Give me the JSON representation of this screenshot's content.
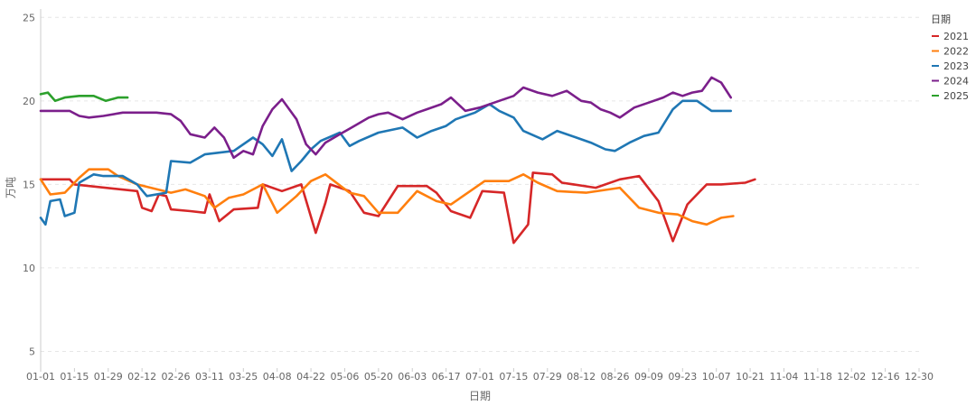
{
  "chart_data": {
    "type": "line",
    "title": "",
    "xlabel": "日期",
    "ylabel": "万吨",
    "ylim": [
      4,
      25.5
    ],
    "yticks": [
      5,
      10,
      15,
      20,
      25
    ],
    "grid": "horizontal dashed",
    "legend": {
      "title": "日期",
      "placement": "right"
    },
    "x_ticks": [
      "01-01",
      "01-15",
      "01-29",
      "02-12",
      "02-26",
      "03-11",
      "03-25",
      "04-08",
      "04-22",
      "05-06",
      "05-20",
      "06-03",
      "06-17",
      "07-01",
      "07-15",
      "07-29",
      "08-12",
      "08-26",
      "09-09",
      "09-23",
      "10-07",
      "10-21",
      "11-04",
      "11-18",
      "12-02",
      "12-16",
      "12-30"
    ],
    "series": [
      {
        "name": "2021",
        "color": "#d62728",
        "points": [
          [
            0,
            15.3
          ],
          [
            12,
            15.3
          ],
          [
            14,
            15.0
          ],
          [
            40,
            14.6
          ],
          [
            42,
            13.6
          ],
          [
            46,
            13.4
          ],
          [
            49,
            14.4
          ],
          [
            52,
            14.3
          ],
          [
            54,
            13.5
          ],
          [
            62,
            13.4
          ],
          [
            68,
            13.3
          ],
          [
            70,
            14.4
          ],
          [
            74,
            12.8
          ],
          [
            80,
            13.5
          ],
          [
            90,
            13.6
          ],
          [
            92,
            15.0
          ],
          [
            100,
            14.6
          ],
          [
            108,
            15.0
          ],
          [
            114,
            12.1
          ],
          [
            118,
            13.9
          ],
          [
            120,
            15.0
          ],
          [
            128,
            14.6
          ],
          [
            134,
            13.3
          ],
          [
            140,
            13.1
          ],
          [
            148,
            14.9
          ],
          [
            160,
            14.9
          ],
          [
            164,
            14.5
          ],
          [
            170,
            13.4
          ],
          [
            178,
            13.0
          ],
          [
            183,
            14.6
          ],
          [
            192,
            14.5
          ],
          [
            196,
            11.5
          ],
          [
            202,
            12.6
          ],
          [
            204,
            15.7
          ],
          [
            212,
            15.6
          ],
          [
            216,
            15.1
          ],
          [
            230,
            14.8
          ],
          [
            240,
            15.3
          ],
          [
            248,
            15.5
          ],
          [
            256,
            14.0
          ],
          [
            262,
            11.6
          ],
          [
            268,
            13.8
          ],
          [
            276,
            15.0
          ],
          [
            282,
            15.0
          ],
          [
            292,
            15.1
          ],
          [
            296,
            15.3
          ]
        ]
      },
      {
        "name": "2022",
        "color": "#ff7f0e",
        "points": [
          [
            0,
            15.3
          ],
          [
            4,
            14.4
          ],
          [
            10,
            14.5
          ],
          [
            16,
            15.4
          ],
          [
            20,
            15.9
          ],
          [
            28,
            15.9
          ],
          [
            32,
            15.5
          ],
          [
            40,
            15.0
          ],
          [
            54,
            14.5
          ],
          [
            60,
            14.7
          ],
          [
            68,
            14.3
          ],
          [
            72,
            13.6
          ],
          [
            78,
            14.2
          ],
          [
            84,
            14.4
          ],
          [
            92,
            15.0
          ],
          [
            98,
            13.3
          ],
          [
            106,
            14.3
          ],
          [
            112,
            15.2
          ],
          [
            118,
            15.6
          ],
          [
            128,
            14.5
          ],
          [
            134,
            14.3
          ],
          [
            140,
            13.3
          ],
          [
            148,
            13.3
          ],
          [
            156,
            14.6
          ],
          [
            164,
            14.0
          ],
          [
            170,
            13.8
          ],
          [
            178,
            14.6
          ],
          [
            184,
            15.2
          ],
          [
            194,
            15.2
          ],
          [
            200,
            15.6
          ],
          [
            206,
            15.1
          ],
          [
            214,
            14.6
          ],
          [
            226,
            14.5
          ],
          [
            240,
            14.8
          ],
          [
            248,
            13.6
          ],
          [
            256,
            13.3
          ],
          [
            264,
            13.2
          ],
          [
            270,
            12.8
          ],
          [
            276,
            12.6
          ],
          [
            282,
            13.0
          ],
          [
            287,
            13.1
          ]
        ]
      },
      {
        "name": "2023",
        "color": "#1f77b4",
        "points": [
          [
            0,
            13.0
          ],
          [
            2,
            12.6
          ],
          [
            4,
            14.0
          ],
          [
            8,
            14.1
          ],
          [
            10,
            13.1
          ],
          [
            14,
            13.3
          ],
          [
            16,
            15.1
          ],
          [
            22,
            15.6
          ],
          [
            26,
            15.5
          ],
          [
            34,
            15.5
          ],
          [
            40,
            15.0
          ],
          [
            44,
            14.3
          ],
          [
            52,
            14.5
          ],
          [
            54,
            16.4
          ],
          [
            62,
            16.3
          ],
          [
            68,
            16.8
          ],
          [
            80,
            17.0
          ],
          [
            88,
            17.8
          ],
          [
            92,
            17.4
          ],
          [
            96,
            16.7
          ],
          [
            100,
            17.7
          ],
          [
            104,
            15.8
          ],
          [
            108,
            16.4
          ],
          [
            112,
            17.1
          ],
          [
            116,
            17.6
          ],
          [
            124,
            18.1
          ],
          [
            128,
            17.3
          ],
          [
            132,
            17.6
          ],
          [
            140,
            18.1
          ],
          [
            150,
            18.4
          ],
          [
            156,
            17.8
          ],
          [
            162,
            18.2
          ],
          [
            168,
            18.5
          ],
          [
            172,
            18.9
          ],
          [
            180,
            19.3
          ],
          [
            186,
            19.8
          ],
          [
            190,
            19.4
          ],
          [
            196,
            19.0
          ],
          [
            200,
            18.2
          ],
          [
            208,
            17.7
          ],
          [
            214,
            18.2
          ],
          [
            222,
            17.8
          ],
          [
            228,
            17.5
          ],
          [
            234,
            17.1
          ],
          [
            238,
            17.0
          ],
          [
            244,
            17.5
          ],
          [
            250,
            17.9
          ],
          [
            256,
            18.1
          ],
          [
            262,
            19.5
          ],
          [
            266,
            20.0
          ],
          [
            272,
            20.0
          ],
          [
            278,
            19.4
          ],
          [
            286,
            19.4
          ]
        ]
      },
      {
        "name": "2024",
        "color": "#7b1f8b",
        "points": [
          [
            0,
            19.4
          ],
          [
            12,
            19.4
          ],
          [
            16,
            19.1
          ],
          [
            20,
            19.0
          ],
          [
            26,
            19.1
          ],
          [
            34,
            19.3
          ],
          [
            42,
            19.3
          ],
          [
            48,
            19.3
          ],
          [
            54,
            19.2
          ],
          [
            58,
            18.8
          ],
          [
            62,
            18.0
          ],
          [
            68,
            17.8
          ],
          [
            72,
            18.4
          ],
          [
            76,
            17.8
          ],
          [
            80,
            16.6
          ],
          [
            84,
            17.0
          ],
          [
            88,
            16.8
          ],
          [
            92,
            18.5
          ],
          [
            96,
            19.5
          ],
          [
            100,
            20.1
          ],
          [
            106,
            18.9
          ],
          [
            110,
            17.4
          ],
          [
            114,
            16.8
          ],
          [
            118,
            17.5
          ],
          [
            124,
            18.0
          ],
          [
            130,
            18.5
          ],
          [
            136,
            19.0
          ],
          [
            140,
            19.2
          ],
          [
            144,
            19.3
          ],
          [
            150,
            18.9
          ],
          [
            156,
            19.3
          ],
          [
            160,
            19.5
          ],
          [
            166,
            19.8
          ],
          [
            170,
            20.2
          ],
          [
            176,
            19.4
          ],
          [
            182,
            19.6
          ],
          [
            190,
            20.0
          ],
          [
            196,
            20.3
          ],
          [
            200,
            20.8
          ],
          [
            206,
            20.5
          ],
          [
            212,
            20.3
          ],
          [
            218,
            20.6
          ],
          [
            224,
            20.0
          ],
          [
            228,
            19.9
          ],
          [
            232,
            19.5
          ],
          [
            236,
            19.3
          ],
          [
            240,
            19.0
          ],
          [
            246,
            19.6
          ],
          [
            252,
            19.9
          ],
          [
            258,
            20.2
          ],
          [
            262,
            20.5
          ],
          [
            266,
            20.3
          ],
          [
            270,
            20.5
          ],
          [
            274,
            20.6
          ],
          [
            278,
            21.4
          ],
          [
            282,
            21.1
          ],
          [
            286,
            20.2
          ]
        ]
      },
      {
        "name": "2025",
        "color": "#2ca02c",
        "points": [
          [
            0,
            20.4
          ],
          [
            3,
            20.5
          ],
          [
            6,
            20.0
          ],
          [
            10,
            20.2
          ],
          [
            16,
            20.3
          ],
          [
            22,
            20.3
          ],
          [
            27,
            20.0
          ],
          [
            32,
            20.2
          ],
          [
            36,
            20.2
          ]
        ]
      }
    ]
  }
}
